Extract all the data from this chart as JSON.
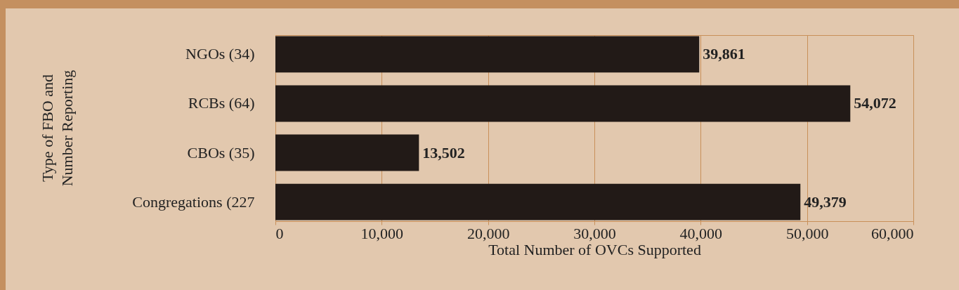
{
  "chart_data": {
    "type": "bar",
    "orientation": "horizontal",
    "categories": [
      "NGOs (34)",
      "RCBs (64)",
      "CBOs (35)",
      "Congregations (227"
    ],
    "values": [
      39861,
      54072,
      13502,
      49379
    ],
    "value_labels": [
      "39,861",
      "54,072",
      "13,502",
      "49,379"
    ],
    "color": "#221a17",
    "xlabel": "Total Number of OVCs Supported",
    "ylabel": "Type of FBO and\nNumber Reporting",
    "xlim": [
      0,
      60000
    ],
    "xticks": [
      0,
      {
        "value": 10000,
        "label": "10,000"
      },
      {
        "value": 20000,
        "label": "20,000"
      },
      {
        "value": 30000,
        "label": "30,000"
      },
      {
        "value": 40000,
        "label": "40,000"
      },
      {
        "value": 50000,
        "label": "50,000"
      },
      {
        "value": 60000,
        "label": "60,000"
      }
    ],
    "grid": "x"
  }
}
